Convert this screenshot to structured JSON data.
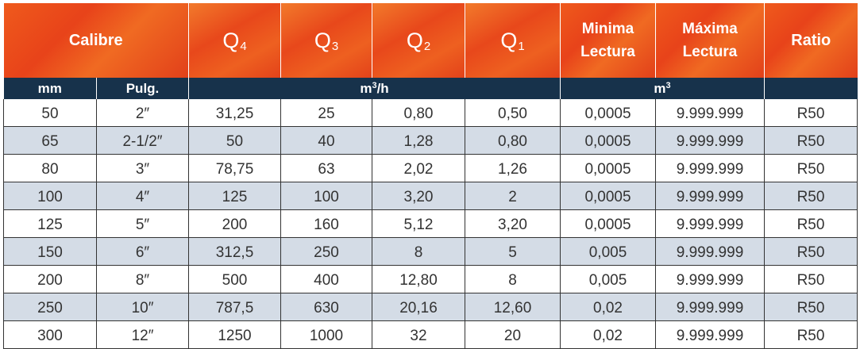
{
  "header": {
    "calibre": "Calibre",
    "q4": {
      "letter": "Q",
      "sub": "4"
    },
    "q3": {
      "letter": "Q",
      "sub": "3"
    },
    "q2": {
      "letter": "Q",
      "sub": "2"
    },
    "q1": {
      "letter": "Q",
      "sub": "1"
    },
    "minima_line1": "Minima",
    "minima_line2": "Lectura",
    "maxima_line1": "Máxima",
    "maxima_line2": "Lectura",
    "ratio": "Ratio"
  },
  "units": {
    "mm": "mm",
    "pulg": "Pulg.",
    "flow_base": "m",
    "flow_exp": "3",
    "flow_suffix": "/h",
    "vol_base": "m",
    "vol_exp": "3"
  },
  "rows": [
    {
      "mm": "50",
      "pulg": "2″",
      "q4": "31,25",
      "q3": "25",
      "q2": "0,80",
      "q1": "0,50",
      "min": "0,0005",
      "max": "9.999.999",
      "ratio": "R50"
    },
    {
      "mm": "65",
      "pulg": "2-1/2″",
      "q4": "50",
      "q3": "40",
      "q2": "1,28",
      "q1": "0,80",
      "min": "0,0005",
      "max": "9.999.999",
      "ratio": "R50"
    },
    {
      "mm": "80",
      "pulg": "3″",
      "q4": "78,75",
      "q3": "63",
      "q2": "2,02",
      "q1": "1,26",
      "min": "0,0005",
      "max": "9.999.999",
      "ratio": "R50"
    },
    {
      "mm": "100",
      "pulg": "4″",
      "q4": "125",
      "q3": "100",
      "q2": "3,20",
      "q1": "2",
      "min": "0,0005",
      "max": "9.999.999",
      "ratio": "R50"
    },
    {
      "mm": "125",
      "pulg": "5″",
      "q4": "200",
      "q3": "160",
      "q2": "5,12",
      "q1": "3,20",
      "min": "0,0005",
      "max": "9.999.999",
      "ratio": "R50"
    },
    {
      "mm": "150",
      "pulg": "6″",
      "q4": "312,5",
      "q3": "250",
      "q2": "8",
      "q1": "5",
      "min": "0,005",
      "max": "9.999.999",
      "ratio": "R50"
    },
    {
      "mm": "200",
      "pulg": "8″",
      "q4": "500",
      "q3": "400",
      "q2": "12,80",
      "q1": "8",
      "min": "0,005",
      "max": "9.999.999",
      "ratio": "R50"
    },
    {
      "mm": "250",
      "pulg": "10″",
      "q4": "787,5",
      "q3": "630",
      "q2": "20,16",
      "q1": "12,60",
      "min": "0,02",
      "max": "9.999.999",
      "ratio": "R50"
    },
    {
      "mm": "300",
      "pulg": "12″",
      "q4": "1250",
      "q3": "1000",
      "q2": "32",
      "q1": "20",
      "min": "0,02",
      "max": "9.999.999",
      "ratio": "R50"
    }
  ],
  "colors": {
    "header_orange": "#e8431a",
    "unit_row_navy": "#17324b",
    "stripe_blue": "#d4dce6"
  }
}
